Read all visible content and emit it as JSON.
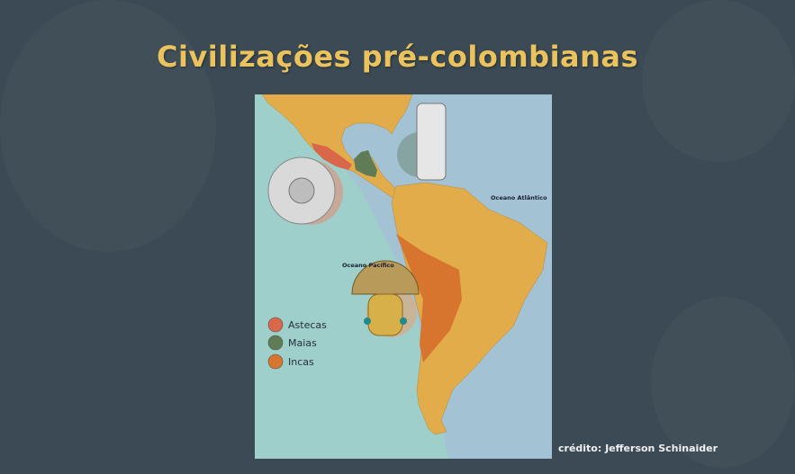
{
  "slide": {
    "title": "Civilizações pré-colombianas",
    "credit": "crédito: Jefferson Schinaider"
  },
  "map": {
    "labels": {
      "atlantic": "Oceano Atlântico",
      "pacific": "Oceano Pacífico"
    },
    "legend": [
      {
        "label": "Astecas",
        "color": "#d9674a"
      },
      {
        "label": "Maias",
        "color": "#5f7c57"
      },
      {
        "label": "Incas",
        "color": "#d7752f"
      }
    ],
    "colors": {
      "land": "#e3ac4b",
      "pacific": "#9ecfca",
      "atlantic": "#a3c2d3",
      "background": "#3b4a54",
      "title": "#eac35e"
    }
  }
}
